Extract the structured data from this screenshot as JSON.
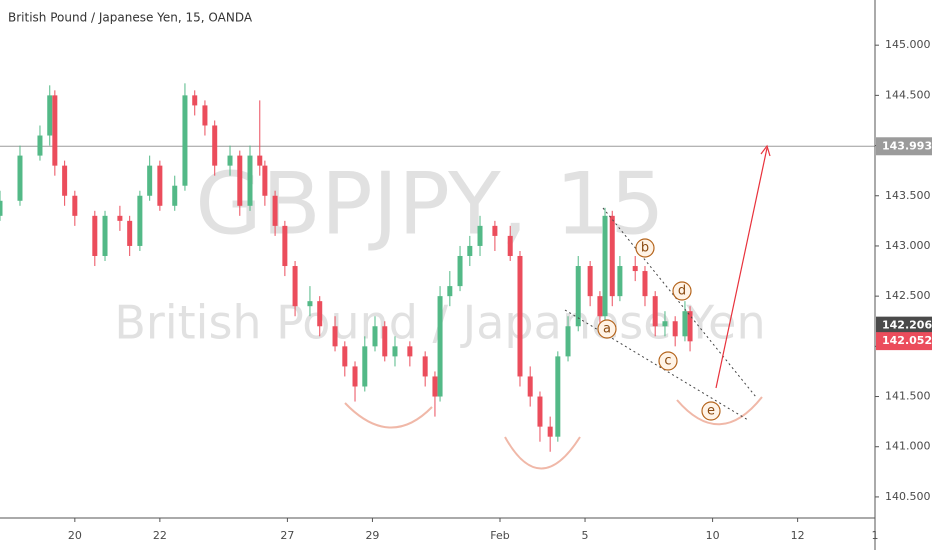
{
  "chart_data": {
    "type": "candlestick",
    "title": "British Pound / Japanese Yen, 15, OANDA",
    "watermark_symbol": "GBPJPY, 15",
    "watermark_name": "British Pound / Japanese Yen",
    "up_color": "#53b987",
    "down_color": "#eb4d5c",
    "xlim": [
      -1.76,
      18.82
    ],
    "ylim": [
      140.29,
      145.45
    ],
    "xticks": [
      {
        "value": 0,
        "label": "20"
      },
      {
        "value": 2,
        "label": "22"
      },
      {
        "value": 5,
        "label": "27"
      },
      {
        "value": 7,
        "label": "29"
      },
      {
        "value": 10,
        "label": "Feb"
      },
      {
        "value": 12,
        "label": "5"
      },
      {
        "value": 15,
        "label": "10"
      },
      {
        "value": 17,
        "label": "12"
      },
      {
        "value": 18.82,
        "label": "1"
      }
    ],
    "yticks": [
      {
        "value": 140.5,
        "label": "140.500"
      },
      {
        "value": 141,
        "label": "141.000"
      },
      {
        "value": 141.5,
        "label": "141.500"
      },
      {
        "value": 142,
        "label": "142.000"
      },
      {
        "value": 142.5,
        "label": "142.500"
      },
      {
        "value": 143,
        "label": "143.000"
      },
      {
        "value": 143.5,
        "label": "143.500"
      },
      {
        "value": 144,
        "label": "144.000"
      },
      {
        "value": 144.5,
        "label": "144.500"
      },
      {
        "value": 145,
        "label": "145.000"
      }
    ],
    "x": [
      -1.76,
      -1.29,
      -0.82,
      -0.59,
      -0.47,
      -0.24,
      0,
      0.47,
      0.71,
      1.06,
      1.29,
      1.53,
      1.76,
      2,
      2.35,
      2.59,
      2.82,
      3.06,
      3.29,
      3.65,
      3.88,
      4.12,
      4.35,
      4.47,
      4.71,
      4.94,
      5.18,
      5.53,
      5.76,
      6.12,
      6.35,
      6.59,
      6.82,
      7.06,
      7.29,
      7.53,
      7.88,
      8.24,
      8.47,
      8.59,
      8.82,
      9.06,
      9.29,
      9.53,
      9.88,
      10.24,
      10.47,
      10.71,
      10.94,
      11.18,
      11.36,
      11.6,
      11.84,
      12.12,
      12.35,
      12.47,
      12.64,
      12.82,
      13.18,
      13.41,
      13.65,
      13.88,
      14.12,
      14.35,
      14.47
    ],
    "open": [
      143.3,
      143.45,
      143.9,
      144.1,
      144.5,
      143.8,
      143.5,
      143.3,
      142.9,
      143.3,
      143.25,
      143.0,
      143.5,
      143.8,
      143.4,
      143.6,
      144.5,
      144.4,
      144.2,
      143.8,
      143.9,
      143.4,
      143.9,
      143.8,
      143.5,
      143.2,
      142.8,
      142.4,
      142.45,
      142.2,
      142.0,
      141.8,
      141.6,
      142.0,
      142.2,
      141.9,
      142.0,
      141.9,
      141.7,
      141.5,
      142.5,
      142.6,
      142.9,
      143.0,
      143.2,
      143.1,
      142.9,
      141.7,
      141.5,
      141.2,
      141.1,
      141.9,
      142.2,
      142.8,
      142.5,
      142.3,
      143.3,
      142.5,
      142.8,
      142.75,
      142.5,
      142.2,
      142.25,
      142.1,
      142.35
    ],
    "high": [
      143.55,
      144.0,
      144.2,
      144.6,
      144.55,
      143.85,
      143.55,
      143.35,
      143.35,
      143.4,
      143.3,
      143.55,
      143.9,
      143.85,
      143.7,
      144.62,
      144.55,
      144.45,
      144.25,
      144.0,
      143.95,
      144.0,
      144.45,
      143.85,
      143.55,
      143.25,
      142.85,
      142.6,
      142.5,
      142.3,
      142.05,
      141.85,
      142.1,
      142.3,
      142.25,
      142.1,
      142.05,
      141.95,
      141.75,
      142.6,
      142.75,
      143.0,
      143.1,
      143.3,
      143.25,
      143.2,
      142.95,
      141.8,
      141.55,
      141.3,
      141.95,
      142.3,
      142.9,
      142.85,
      142.55,
      143.38,
      143.35,
      142.9,
      142.9,
      142.8,
      142.55,
      142.35,
      142.3,
      142.45,
      142.4
    ],
    "low": [
      143.25,
      143.4,
      143.85,
      144.0,
      143.7,
      143.4,
      143.2,
      142.8,
      142.85,
      143.15,
      142.9,
      142.95,
      143.45,
      143.35,
      143.35,
      143.55,
      144.3,
      144.1,
      143.7,
      143.7,
      143.3,
      143.35,
      143.7,
      143.4,
      143.1,
      142.7,
      142.3,
      142.3,
      142.1,
      141.95,
      141.7,
      141.45,
      141.55,
      141.95,
      141.85,
      141.8,
      141.8,
      141.6,
      141.3,
      141.45,
      142.4,
      142.55,
      142.8,
      142.9,
      142.95,
      142.85,
      141.6,
      141.4,
      141.05,
      140.95,
      141.05,
      141.85,
      142.15,
      142.4,
      142.2,
      142.25,
      142.4,
      142.45,
      142.65,
      142.4,
      142.1,
      142.1,
      142.0,
      142.05,
      141.95
    ],
    "close": [
      143.45,
      143.9,
      144.1,
      144.5,
      143.8,
      143.5,
      143.3,
      142.9,
      143.3,
      143.25,
      143.0,
      143.5,
      143.8,
      143.4,
      143.6,
      144.5,
      144.4,
      144.2,
      143.8,
      143.9,
      143.4,
      143.9,
      143.8,
      143.5,
      143.2,
      142.8,
      142.4,
      142.45,
      142.2,
      142.0,
      141.8,
      141.6,
      142.0,
      142.2,
      141.9,
      142.0,
      141.9,
      141.7,
      141.5,
      142.5,
      142.6,
      142.9,
      143.0,
      143.2,
      143.1,
      142.9,
      141.7,
      141.5,
      141.2,
      141.1,
      141.9,
      142.2,
      142.8,
      142.5,
      142.3,
      143.3,
      142.5,
      142.8,
      142.75,
      142.5,
      142.2,
      142.25,
      142.1,
      142.35,
      142.05
    ],
    "price_lines": [
      {
        "value": 143.993,
        "label": "143.993",
        "color": "#9b9b9b"
      },
      {
        "value": 142.206,
        "label": "142.206",
        "color": "#4a4a4a"
      },
      {
        "value": 142.052,
        "label": "142.052",
        "color": "#eb4d5c"
      }
    ],
    "wave_labels": [
      "a",
      "b",
      "c",
      "d",
      "e"
    ]
  }
}
